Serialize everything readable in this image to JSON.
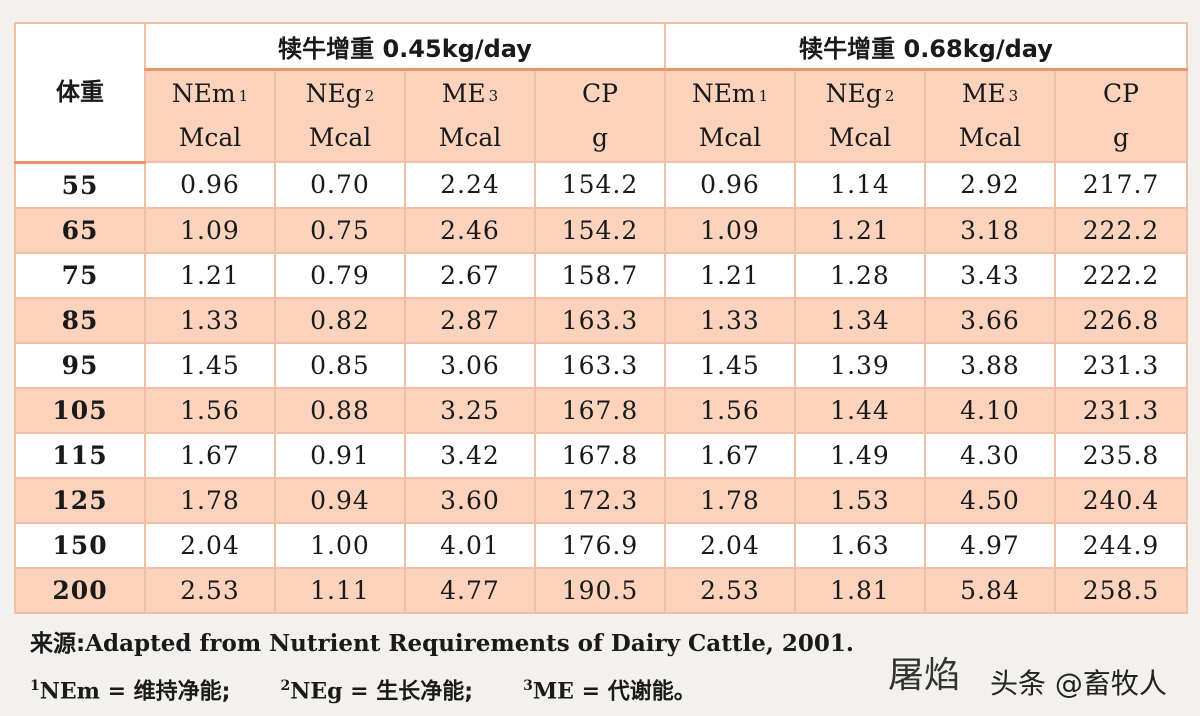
{
  "table": {
    "weight_header": "体重",
    "groups": [
      {
        "title": "犊牛增重 0.45kg/day"
      },
      {
        "title": "犊牛增重 0.68kg/day"
      }
    ],
    "columns": [
      {
        "name": "NEm",
        "sup": "1",
        "unit": "Mcal"
      },
      {
        "name": "NEg",
        "sup": "2",
        "unit": "Mcal"
      },
      {
        "name": "ME",
        "sup": "3",
        "unit": "Mcal"
      },
      {
        "name": "CP",
        "sup": "",
        "unit": "g"
      },
      {
        "name": "NEm",
        "sup": "1",
        "unit": "Mcal"
      },
      {
        "name": "NEg",
        "sup": "2",
        "unit": "Mcal"
      },
      {
        "name": "ME",
        "sup": "3",
        "unit": "Mcal"
      },
      {
        "name": "CP",
        "sup": "",
        "unit": "g"
      }
    ],
    "rows": [
      {
        "bw": "55",
        "vals": [
          "0.96",
          "0.70",
          "2.24",
          "154.2",
          "0.96",
          "1.14",
          "2.92",
          "217.7"
        ]
      },
      {
        "bw": "65",
        "vals": [
          "1.09",
          "0.75",
          "2.46",
          "154.2",
          "1.09",
          "1.21",
          "3.18",
          "222.2"
        ]
      },
      {
        "bw": "75",
        "vals": [
          "1.21",
          "0.79",
          "2.67",
          "158.7",
          "1.21",
          "1.28",
          "3.43",
          "222.2"
        ]
      },
      {
        "bw": "85",
        "vals": [
          "1.33",
          "0.82",
          "2.87",
          "163.3",
          "1.33",
          "1.34",
          "3.66",
          "226.8"
        ]
      },
      {
        "bw": "95",
        "vals": [
          "1.45",
          "0.85",
          "3.06",
          "163.3",
          "1.45",
          "1.39",
          "3.88",
          "231.3"
        ]
      },
      {
        "bw": "105",
        "vals": [
          "1.56",
          "0.88",
          "3.25",
          "167.8",
          "1.56",
          "1.44",
          "4.10",
          "231.3"
        ]
      },
      {
        "bw": "115",
        "vals": [
          "1.67",
          "0.91",
          "3.42",
          "167.8",
          "1.67",
          "1.49",
          "4.30",
          "235.8"
        ]
      },
      {
        "bw": "125",
        "vals": [
          "1.78",
          "0.94",
          "3.60",
          "172.3",
          "1.78",
          "1.53",
          "4.50",
          "240.4"
        ]
      },
      {
        "bw": "150",
        "vals": [
          "2.04",
          "1.00",
          "4.01",
          "176.9",
          "2.04",
          "1.63",
          "4.97",
          "244.9"
        ]
      },
      {
        "bw": "200",
        "vals": [
          "2.53",
          "1.11",
          "4.77",
          "190.5",
          "2.53",
          "1.81",
          "5.84",
          "258.5"
        ]
      }
    ]
  },
  "footer": {
    "source_prefix": "来源:",
    "source_text": "Adapted from Nutrient Requirements of Dairy Cattle, 2001.",
    "notes": [
      {
        "sup": "1",
        "label": "NEm =",
        "text": "维持净能;"
      },
      {
        "sup": "2",
        "label": "NEg =",
        "text": "生长净能;"
      },
      {
        "sup": "3",
        "label": "ME =",
        "text": "代谢能。"
      }
    ]
  },
  "signature": "屠焰",
  "watermark": "头条 @畜牧人",
  "colors": {
    "row_alt": "#fbd3bd",
    "border": "#f0bfa5",
    "header_rule": "#e8956a"
  }
}
